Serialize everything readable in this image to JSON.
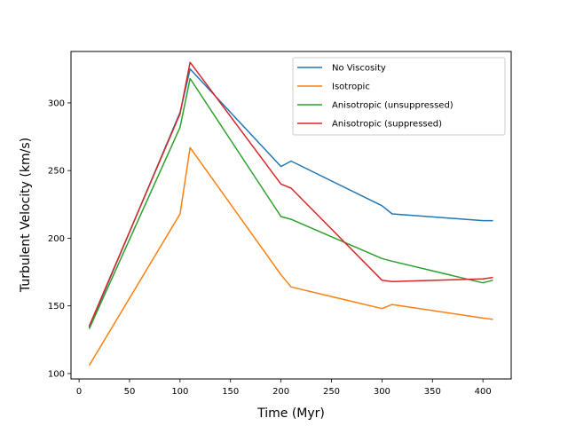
{
  "chart_data": {
    "type": "line",
    "title": "",
    "xlabel": "Time (Myr)",
    "ylabel": "Turbulent Velocity (km/s)",
    "xlim": [
      -8,
      428
    ],
    "ylim": [
      96,
      338
    ],
    "xticks": [
      0,
      50,
      100,
      150,
      200,
      250,
      300,
      350,
      400
    ],
    "yticks": [
      100,
      150,
      200,
      250,
      300
    ],
    "grid": false,
    "legend_position": "top-right",
    "series": [
      {
        "name": "No Viscosity",
        "color": "#1f77b4",
        "x": [
          10,
          100,
          110,
          200,
          210,
          300,
          310,
          400,
          410
        ],
        "y": [
          134,
          293,
          325,
          253,
          257,
          224,
          218,
          213,
          213
        ]
      },
      {
        "name": "Isotropic",
        "color": "#ff7f0e",
        "x": [
          10,
          100,
          110,
          200,
          210,
          300,
          310,
          400,
          410
        ],
        "y": [
          106,
          218,
          267,
          173,
          164,
          148,
          151,
          141,
          140
        ]
      },
      {
        "name": "Anisotropic (unsuppressed)",
        "color": "#2ca02c",
        "x": [
          10,
          100,
          110,
          200,
          210,
          300,
          310,
          400,
          410
        ],
        "y": [
          133,
          282,
          318,
          216,
          214,
          185,
          183,
          167,
          169
        ]
      },
      {
        "name": "Anisotropic (suppressed)",
        "color": "#d62728",
        "x": [
          10,
          100,
          110,
          200,
          210,
          300,
          310,
          400,
          410
        ],
        "y": [
          135,
          292,
          330,
          240,
          237,
          169,
          168,
          170,
          171
        ]
      }
    ]
  }
}
